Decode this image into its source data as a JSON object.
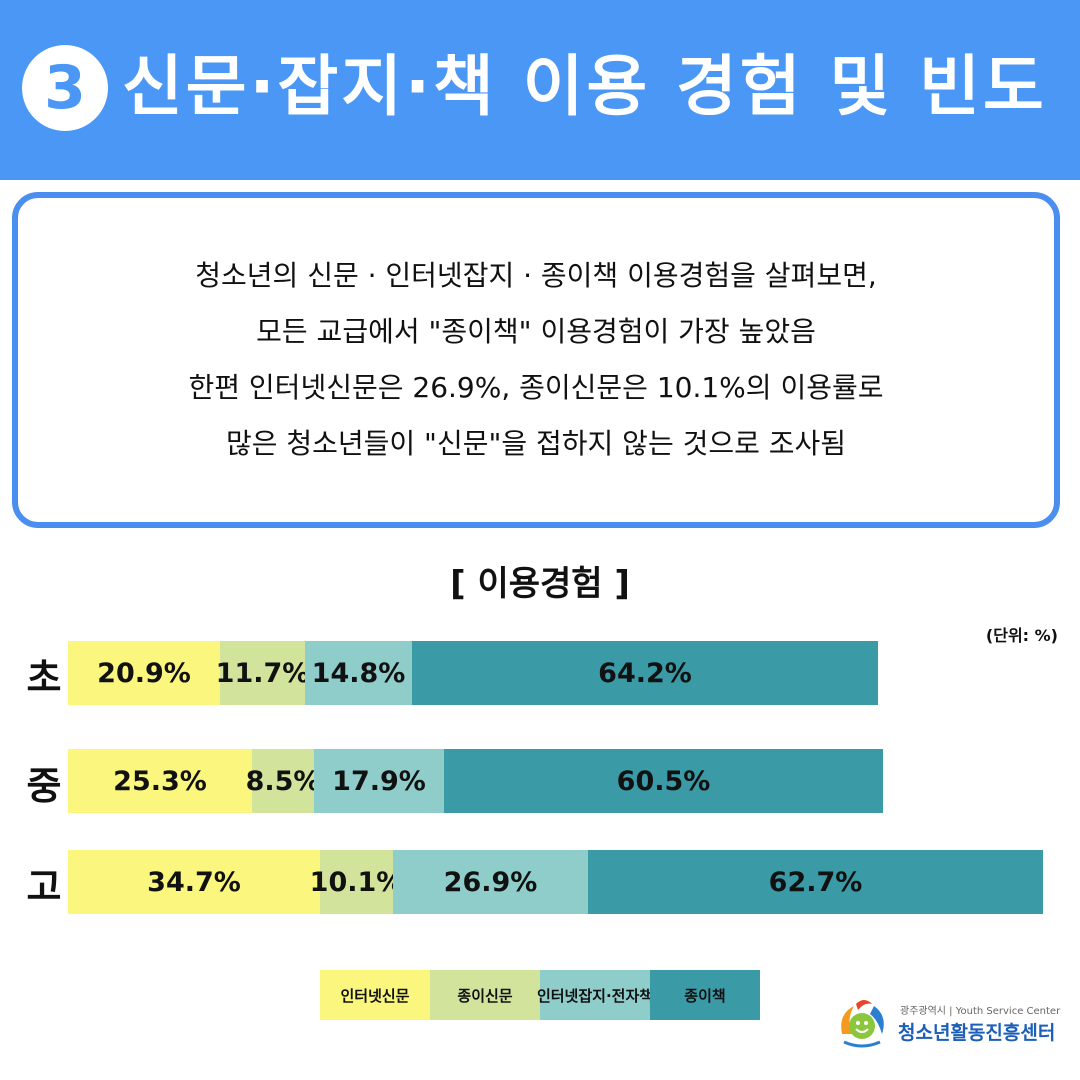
{
  "header": {
    "number": "3",
    "title": "신문·잡지·책 이용 경험 및 빈도"
  },
  "summary": {
    "lines": [
      "청소년의 신문 · 인터넷잡지 · 종이책 이용경험을 살펴보면,",
      "모든 교급에서 \"종이책\" 이용경험이 가장 높았음",
      "한편 인터넷신문은 26.9%, 종이신문은 10.1%의 이용률로",
      "많은 청소년들이 \"신문\"을 접하지 않는 것으로 조사됨"
    ]
  },
  "colors": {
    "header_bg": "#4a97f5",
    "box_border": "#4a8ff0",
    "series": [
      "#fbf67e",
      "#d2e49c",
      "#8fcdcb",
      "#3a9aa6"
    ]
  },
  "chart_data": {
    "type": "bar",
    "orientation": "horizontal",
    "stacked": true,
    "title": "[ 이용경험 ]",
    "unit_label": "(단위: %)",
    "categories": [
      "초",
      "중",
      "고"
    ],
    "series": [
      {
        "name": "인터넷신문",
        "values": [
          20.9,
          25.3,
          34.7
        ],
        "labels": [
          "20.9%",
          "25.3%",
          "34.7%"
        ]
      },
      {
        "name": "종이신문",
        "values": [
          11.7,
          8.5,
          10.1
        ],
        "labels": [
          "11.7%",
          "8.5%",
          "10.1%"
        ]
      },
      {
        "name": "인터넷잡지·전자책",
        "values": [
          14.8,
          17.9,
          26.9
        ],
        "labels": [
          "14.8%",
          "17.9%",
          "26.9%"
        ]
      },
      {
        "name": "종이책",
        "values": [
          64.2,
          60.5,
          62.7
        ],
        "labels": [
          "64.2%",
          "60.5%",
          "62.7%"
        ]
      }
    ],
    "legend_position": "bottom-center",
    "grid": false
  },
  "logo": {
    "line1": "광주광역시 | Youth Service Center",
    "line2": "청소년활동진흥센터"
  }
}
